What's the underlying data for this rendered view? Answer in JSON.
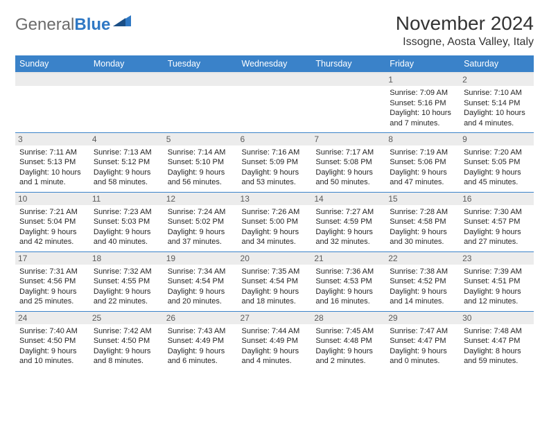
{
  "logo": {
    "text_general": "General",
    "text_blue": "Blue"
  },
  "header": {
    "title": "November 2024",
    "subtitle": "Issogne, Aosta Valley, Italy"
  },
  "colors": {
    "accent": "#3a82c9",
    "header_row_bg": "#3a82c9",
    "daynum_bg": "#ececec",
    "row_border": "#3a82c9"
  },
  "days_of_week": [
    "Sunday",
    "Monday",
    "Tuesday",
    "Wednesday",
    "Thursday",
    "Friday",
    "Saturday"
  ],
  "weeks": [
    [
      {
        "n": "",
        "sr": "",
        "ss": "",
        "dl": ""
      },
      {
        "n": "",
        "sr": "",
        "ss": "",
        "dl": ""
      },
      {
        "n": "",
        "sr": "",
        "ss": "",
        "dl": ""
      },
      {
        "n": "",
        "sr": "",
        "ss": "",
        "dl": ""
      },
      {
        "n": "",
        "sr": "",
        "ss": "",
        "dl": ""
      },
      {
        "n": "1",
        "sr": "Sunrise: 7:09 AM",
        "ss": "Sunset: 5:16 PM",
        "dl": "Daylight: 10 hours and 7 minutes."
      },
      {
        "n": "2",
        "sr": "Sunrise: 7:10 AM",
        "ss": "Sunset: 5:14 PM",
        "dl": "Daylight: 10 hours and 4 minutes."
      }
    ],
    [
      {
        "n": "3",
        "sr": "Sunrise: 7:11 AM",
        "ss": "Sunset: 5:13 PM",
        "dl": "Daylight: 10 hours and 1 minute."
      },
      {
        "n": "4",
        "sr": "Sunrise: 7:13 AM",
        "ss": "Sunset: 5:12 PM",
        "dl": "Daylight: 9 hours and 58 minutes."
      },
      {
        "n": "5",
        "sr": "Sunrise: 7:14 AM",
        "ss": "Sunset: 5:10 PM",
        "dl": "Daylight: 9 hours and 56 minutes."
      },
      {
        "n": "6",
        "sr": "Sunrise: 7:16 AM",
        "ss": "Sunset: 5:09 PM",
        "dl": "Daylight: 9 hours and 53 minutes."
      },
      {
        "n": "7",
        "sr": "Sunrise: 7:17 AM",
        "ss": "Sunset: 5:08 PM",
        "dl": "Daylight: 9 hours and 50 minutes."
      },
      {
        "n": "8",
        "sr": "Sunrise: 7:19 AM",
        "ss": "Sunset: 5:06 PM",
        "dl": "Daylight: 9 hours and 47 minutes."
      },
      {
        "n": "9",
        "sr": "Sunrise: 7:20 AM",
        "ss": "Sunset: 5:05 PM",
        "dl": "Daylight: 9 hours and 45 minutes."
      }
    ],
    [
      {
        "n": "10",
        "sr": "Sunrise: 7:21 AM",
        "ss": "Sunset: 5:04 PM",
        "dl": "Daylight: 9 hours and 42 minutes."
      },
      {
        "n": "11",
        "sr": "Sunrise: 7:23 AM",
        "ss": "Sunset: 5:03 PM",
        "dl": "Daylight: 9 hours and 40 minutes."
      },
      {
        "n": "12",
        "sr": "Sunrise: 7:24 AM",
        "ss": "Sunset: 5:02 PM",
        "dl": "Daylight: 9 hours and 37 minutes."
      },
      {
        "n": "13",
        "sr": "Sunrise: 7:26 AM",
        "ss": "Sunset: 5:00 PM",
        "dl": "Daylight: 9 hours and 34 minutes."
      },
      {
        "n": "14",
        "sr": "Sunrise: 7:27 AM",
        "ss": "Sunset: 4:59 PM",
        "dl": "Daylight: 9 hours and 32 minutes."
      },
      {
        "n": "15",
        "sr": "Sunrise: 7:28 AM",
        "ss": "Sunset: 4:58 PM",
        "dl": "Daylight: 9 hours and 30 minutes."
      },
      {
        "n": "16",
        "sr": "Sunrise: 7:30 AM",
        "ss": "Sunset: 4:57 PM",
        "dl": "Daylight: 9 hours and 27 minutes."
      }
    ],
    [
      {
        "n": "17",
        "sr": "Sunrise: 7:31 AM",
        "ss": "Sunset: 4:56 PM",
        "dl": "Daylight: 9 hours and 25 minutes."
      },
      {
        "n": "18",
        "sr": "Sunrise: 7:32 AM",
        "ss": "Sunset: 4:55 PM",
        "dl": "Daylight: 9 hours and 22 minutes."
      },
      {
        "n": "19",
        "sr": "Sunrise: 7:34 AM",
        "ss": "Sunset: 4:54 PM",
        "dl": "Daylight: 9 hours and 20 minutes."
      },
      {
        "n": "20",
        "sr": "Sunrise: 7:35 AM",
        "ss": "Sunset: 4:54 PM",
        "dl": "Daylight: 9 hours and 18 minutes."
      },
      {
        "n": "21",
        "sr": "Sunrise: 7:36 AM",
        "ss": "Sunset: 4:53 PM",
        "dl": "Daylight: 9 hours and 16 minutes."
      },
      {
        "n": "22",
        "sr": "Sunrise: 7:38 AM",
        "ss": "Sunset: 4:52 PM",
        "dl": "Daylight: 9 hours and 14 minutes."
      },
      {
        "n": "23",
        "sr": "Sunrise: 7:39 AM",
        "ss": "Sunset: 4:51 PM",
        "dl": "Daylight: 9 hours and 12 minutes."
      }
    ],
    [
      {
        "n": "24",
        "sr": "Sunrise: 7:40 AM",
        "ss": "Sunset: 4:50 PM",
        "dl": "Daylight: 9 hours and 10 minutes."
      },
      {
        "n": "25",
        "sr": "Sunrise: 7:42 AM",
        "ss": "Sunset: 4:50 PM",
        "dl": "Daylight: 9 hours and 8 minutes."
      },
      {
        "n": "26",
        "sr": "Sunrise: 7:43 AM",
        "ss": "Sunset: 4:49 PM",
        "dl": "Daylight: 9 hours and 6 minutes."
      },
      {
        "n": "27",
        "sr": "Sunrise: 7:44 AM",
        "ss": "Sunset: 4:49 PM",
        "dl": "Daylight: 9 hours and 4 minutes."
      },
      {
        "n": "28",
        "sr": "Sunrise: 7:45 AM",
        "ss": "Sunset: 4:48 PM",
        "dl": "Daylight: 9 hours and 2 minutes."
      },
      {
        "n": "29",
        "sr": "Sunrise: 7:47 AM",
        "ss": "Sunset: 4:47 PM",
        "dl": "Daylight: 9 hours and 0 minutes."
      },
      {
        "n": "30",
        "sr": "Sunrise: 7:48 AM",
        "ss": "Sunset: 4:47 PM",
        "dl": "Daylight: 8 hours and 59 minutes."
      }
    ]
  ]
}
